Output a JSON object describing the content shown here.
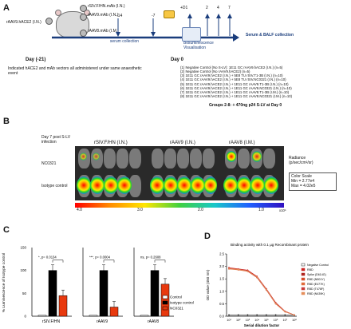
{
  "panels": {
    "a": "A",
    "b": "B",
    "c": "C",
    "d": "D"
  },
  "a": {
    "group_label": "rAAV9.hACE2 (I.N.)",
    "vec1": "rSIV.F/HN.mAb (I.N.)",
    "vec2": "rAAV9.mAb (I.N.)",
    "vec3": "rAAV8.mAb (I.M.)",
    "t14": "-14",
    "t7": "-7",
    "serum1": "serum collection",
    "d1": "+D1",
    "t2": "2",
    "t4": "4",
    "t7b": "7",
    "serum_balf": "Serum & BALF collection",
    "biolum": "Bioluminescence Visualisation",
    "day_m21": "Day (-21)",
    "day0": "Day 0",
    "note": "Indicated hACE2 and mAb vectors all administered under same anaesthetic event",
    "groups": [
      "(1) Negative Control (No S-LV): 1E11 GC rAAV9.hACE2 (I.N.) (n=5)",
      "(2) Negative Control (No rAAV9.hACE2) (n=5)",
      "(3) 1E11 GC rAAV9.hACE2 (I.N.) + 5E8 TU rSIV.T1-3B (I.N.) (n=10)",
      "(4) 1E11 GC rAAV9.hACE2 (I.N.) + 5E8 TU rSIV.NC0321 (I.N.) (n=10)",
      "(5) 1E11 GC rAAV9.hACE2 (I.N.) + 1E11 GC rAAV9.T1-3B (I.N.) (n=10)",
      "(6) 1E11 GC rAAV9.hACE2 (I.N.) + 1E11 GC rAAV9.NC0321 (I.N.) (n=10)",
      "(7) 1E11 GC rAAV9.hACE2 (I.N.) + 1E11 GC rAAV8.T1-3B (I.M.) (n=10)",
      "(8) 1E11 GC rAAV9.hACE2 (I.N.) + 1E11 GC rAAV8.NC0321 (I.M.) (n=10)"
    ],
    "groups_note": "Groups 2-8: + 470ng p24 S-LV at Day 0"
  },
  "b": {
    "header_left": "Day 7 post S-LV infection",
    "cols": [
      "rSIV.F/HN (I.N.)",
      "rAAV9 (I.N.)",
      "rAAV8 (I.M.)"
    ],
    "row1": "NC0321",
    "row2": "Isotype control",
    "radiance": "Radiance (p/sec/cm²/sr)",
    "color_scale": "Color Scale",
    "min": "Min = 2.77e4",
    "max": "Max = 4.02e5",
    "ticks": [
      "4.0",
      "3.0",
      "2.0",
      "1.0"
    ],
    "exp": "x10⁵"
  },
  "chart_data": [
    {
      "type": "bar",
      "ylabel": "% Luminescence of Isotype control",
      "ylim": [
        0,
        150
      ],
      "yticks": [
        "0",
        "50",
        "100",
        "150"
      ],
      "legend": [
        "Control",
        "Isotype control",
        "NC0321"
      ],
      "colors": {
        "Control": "#ffffff",
        "Isotype control": "#000000",
        "NC0321": "#e8390e"
      },
      "groups": [
        {
          "name": "rSIV.F/HN",
          "pval": "*, p= 0.0134",
          "values": [
            2,
            100,
            45
          ]
        },
        {
          "name": "rAAV9",
          "pval": "***, p= 0.0004",
          "values": [
            2,
            100,
            20
          ]
        },
        {
          "name": "rAAV8",
          "pval": "ns, p= 0.2608",
          "values": [
            2,
            100,
            70
          ]
        }
      ]
    },
    {
      "type": "line",
      "title": "Binding activity with 0.1 µg Recombinant protein",
      "ylabel": "OD value (450 nm)",
      "xlabel": "Serial dilution factor",
      "ylim": [
        0,
        2.5
      ],
      "yticks": [
        "0.0",
        "0.5",
        "1.0",
        "1.5",
        "2.0",
        "2.5"
      ],
      "series": [
        {
          "name": "Negative Control",
          "color": "#222222",
          "values": [
            0.05,
            0.05,
            0.05,
            0.05,
            0.05,
            0.05,
            0.05,
            0.05
          ]
        },
        {
          "name": "RBD",
          "color": "#cc2222",
          "values": [
            1.95,
            1.9,
            1.85,
            1.6,
            1.1,
            0.55,
            0.2,
            0.05
          ]
        },
        {
          "name": "Spike (D614G)",
          "color": "#b0251f",
          "values": [
            1.9,
            1.88,
            1.8,
            1.55,
            1.05,
            0.5,
            0.18,
            0.05
          ]
        },
        {
          "name": "RBD (N501Y)",
          "color": "#d44a2a",
          "values": [
            1.92,
            1.87,
            1.82,
            1.58,
            1.08,
            0.52,
            0.19,
            0.05
          ]
        },
        {
          "name": "RBD (E477K)",
          "color": "#e06a3a",
          "values": [
            1.9,
            1.86,
            1.8,
            1.56,
            1.06,
            0.5,
            0.18,
            0.05
          ]
        },
        {
          "name": "RBD (T478F)",
          "color": "#c93a3a",
          "values": [
            1.93,
            1.89,
            1.83,
            1.59,
            1.09,
            0.53,
            0.19,
            0.05
          ]
        },
        {
          "name": "RBD (N439K)",
          "color": "#e58e5a",
          "values": [
            1.91,
            1.88,
            1.81,
            1.57,
            1.07,
            0.51,
            0.18,
            0.05
          ]
        }
      ],
      "x": [
        "10¹",
        "10²",
        "10³",
        "10⁴",
        "10⁵",
        "10⁶",
        "10⁷",
        "10⁸"
      ]
    }
  ]
}
